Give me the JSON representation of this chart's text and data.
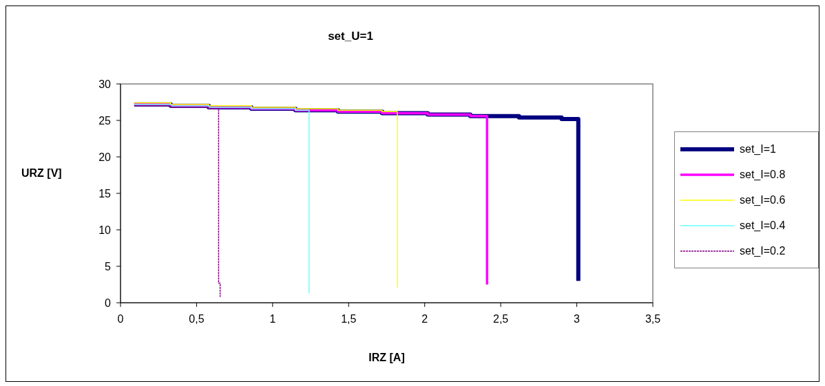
{
  "chart_data": {
    "type": "step",
    "title": "set_U=1",
    "xlabel": "IRZ [A]",
    "ylabel": "URZ [V]",
    "xlim": [
      0,
      3.5
    ],
    "xticks": [
      0,
      {
        "value": 0.5,
        "label": "0,5"
      },
      1,
      {
        "value": 1.5,
        "label": "1,5"
      },
      2,
      {
        "value": 2.5,
        "label": "2,5"
      },
      3,
      {
        "value": 3.5,
        "label": "3,5"
      }
    ],
    "ylim": [
      0,
      30
    ],
    "yticks": [
      0,
      5,
      10,
      15,
      20,
      25,
      30
    ],
    "grid": false,
    "legend": "right",
    "marker": "none",
    "series": [
      {
        "name": "set_I=1",
        "color": "#000080",
        "line_style": "solid",
        "x": [
          0.09,
          0.33,
          0.58,
          0.86,
          1.15,
          1.43,
          1.72,
          2.02,
          2.3,
          2.62,
          2.9,
          3.01
        ],
        "values": [
          27.2,
          27.0,
          26.8,
          26.6,
          26.4,
          26.2,
          26.0,
          25.8,
          25.6,
          25.4,
          25.2,
          3.0
        ]
      },
      {
        "name": "set_I=0.8",
        "color": "#ff00ff",
        "line_style": "solid",
        "x": [
          0.09,
          0.33,
          0.58,
          0.86,
          1.15,
          1.43,
          1.72,
          2.02,
          2.3,
          2.41
        ],
        "values": [
          27.2,
          27.0,
          26.8,
          26.6,
          26.4,
          26.2,
          26.0,
          25.8,
          25.6,
          2.5
        ]
      },
      {
        "name": "set_I=0.6",
        "color": "#ffff00",
        "line_style": "solid",
        "x": [
          0.09,
          0.33,
          0.58,
          0.86,
          1.15,
          1.43,
          1.72,
          1.82
        ],
        "values": [
          27.4,
          27.2,
          27.0,
          26.8,
          26.6,
          26.4,
          26.2,
          2.1
        ]
      },
      {
        "name": "set_I=0.4",
        "color": "#66ffff",
        "line_style": "solid",
        "x": [
          0.09,
          0.33,
          0.58,
          0.86,
          1.15,
          1.24
        ],
        "values": [
          27.2,
          27.0,
          26.8,
          26.6,
          26.4,
          1.3
        ]
      },
      {
        "name": "set_I=0.2",
        "color": "#800080",
        "line_style": "dashed",
        "x": [
          0.09,
          0.33,
          0.58,
          0.645,
          0.655
        ],
        "values": [
          27.0,
          26.8,
          26.6,
          2.7,
          0.8
        ]
      }
    ]
  }
}
